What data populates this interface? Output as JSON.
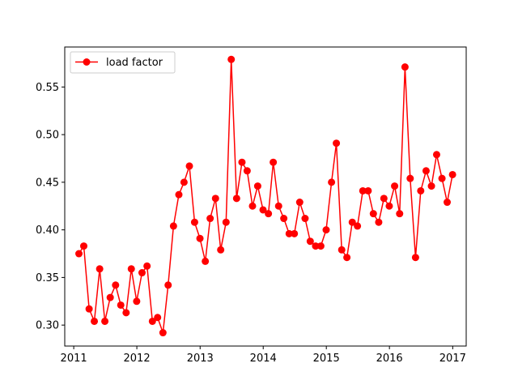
{
  "chart_data": {
    "type": "line",
    "x_axis": {
      "ticks": [
        "2011",
        "2012",
        "2013",
        "2014",
        "2015",
        "2016",
        "2017"
      ]
    },
    "y_axis": {
      "ticks": [
        "0.30",
        "0.35",
        "0.40",
        "0.45",
        "0.50",
        "0.55"
      ],
      "ylim": [
        0.278,
        0.592
      ]
    },
    "xlim": [
      "2010-11-10",
      "2017-03-20"
    ],
    "grid": false,
    "legend": {
      "position": "upper left"
    },
    "series": [
      {
        "name": "load factor",
        "color": "#ff0000",
        "marker": "circle",
        "points": [
          [
            "2011-01-31",
            0.375
          ],
          [
            "2011-02-28",
            0.383
          ],
          [
            "2011-03-31",
            0.317
          ],
          [
            "2011-04-30",
            0.304
          ],
          [
            "2011-05-31",
            0.359
          ],
          [
            "2011-06-30",
            0.304
          ],
          [
            "2011-07-31",
            0.329
          ],
          [
            "2011-08-31",
            0.342
          ],
          [
            "2011-09-30",
            0.321
          ],
          [
            "2011-10-31",
            0.313
          ],
          [
            "2011-11-30",
            0.359
          ],
          [
            "2011-12-31",
            0.325
          ],
          [
            "2012-01-31",
            0.355
          ],
          [
            "2012-02-29",
            0.362
          ],
          [
            "2012-03-31",
            0.304
          ],
          [
            "2012-04-30",
            0.308
          ],
          [
            "2012-05-31",
            0.292
          ],
          [
            "2012-06-30",
            0.342
          ],
          [
            "2012-07-31",
            0.404
          ],
          [
            "2012-08-31",
            0.437
          ],
          [
            "2012-09-30",
            0.45
          ],
          [
            "2012-10-31",
            0.467
          ],
          [
            "2012-11-30",
            0.408
          ],
          [
            "2012-12-31",
            0.391
          ],
          [
            "2013-01-31",
            0.367
          ],
          [
            "2013-02-28",
            0.412
          ],
          [
            "2013-03-31",
            0.433
          ],
          [
            "2013-04-30",
            0.379
          ],
          [
            "2013-05-31",
            0.408
          ],
          [
            "2013-06-30",
            0.579
          ],
          [
            "2013-07-31",
            0.433
          ],
          [
            "2013-08-31",
            0.471
          ],
          [
            "2013-09-30",
            0.462
          ],
          [
            "2013-10-31",
            0.425
          ],
          [
            "2013-11-30",
            0.446
          ],
          [
            "2013-12-31",
            0.421
          ],
          [
            "2014-01-31",
            0.417
          ],
          [
            "2014-02-28",
            0.471
          ],
          [
            "2014-03-31",
            0.425
          ],
          [
            "2014-04-30",
            0.412
          ],
          [
            "2014-05-31",
            0.396
          ],
          [
            "2014-06-30",
            0.396
          ],
          [
            "2014-07-31",
            0.429
          ],
          [
            "2014-08-31",
            0.412
          ],
          [
            "2014-09-30",
            0.388
          ],
          [
            "2014-10-31",
            0.383
          ],
          [
            "2014-11-30",
            0.383
          ],
          [
            "2014-12-31",
            0.4
          ],
          [
            "2015-01-31",
            0.45
          ],
          [
            "2015-02-28",
            0.491
          ],
          [
            "2015-03-31",
            0.379
          ],
          [
            "2015-04-30",
            0.371
          ],
          [
            "2015-05-31",
            0.408
          ],
          [
            "2015-06-30",
            0.404
          ],
          [
            "2015-07-31",
            0.441
          ],
          [
            "2015-08-31",
            0.441
          ],
          [
            "2015-09-30",
            0.417
          ],
          [
            "2015-10-31",
            0.408
          ],
          [
            "2015-11-30",
            0.433
          ],
          [
            "2015-12-31",
            0.425
          ],
          [
            "2016-01-31",
            0.446
          ],
          [
            "2016-02-29",
            0.417
          ],
          [
            "2016-03-31",
            0.571
          ],
          [
            "2016-04-30",
            0.454
          ],
          [
            "2016-05-31",
            0.371
          ],
          [
            "2016-06-30",
            0.441
          ],
          [
            "2016-07-31",
            0.462
          ],
          [
            "2016-08-31",
            0.446
          ],
          [
            "2016-09-30",
            0.479
          ],
          [
            "2016-10-31",
            0.454
          ],
          [
            "2016-11-30",
            0.429
          ],
          [
            "2016-12-31",
            0.458
          ]
        ]
      }
    ]
  }
}
